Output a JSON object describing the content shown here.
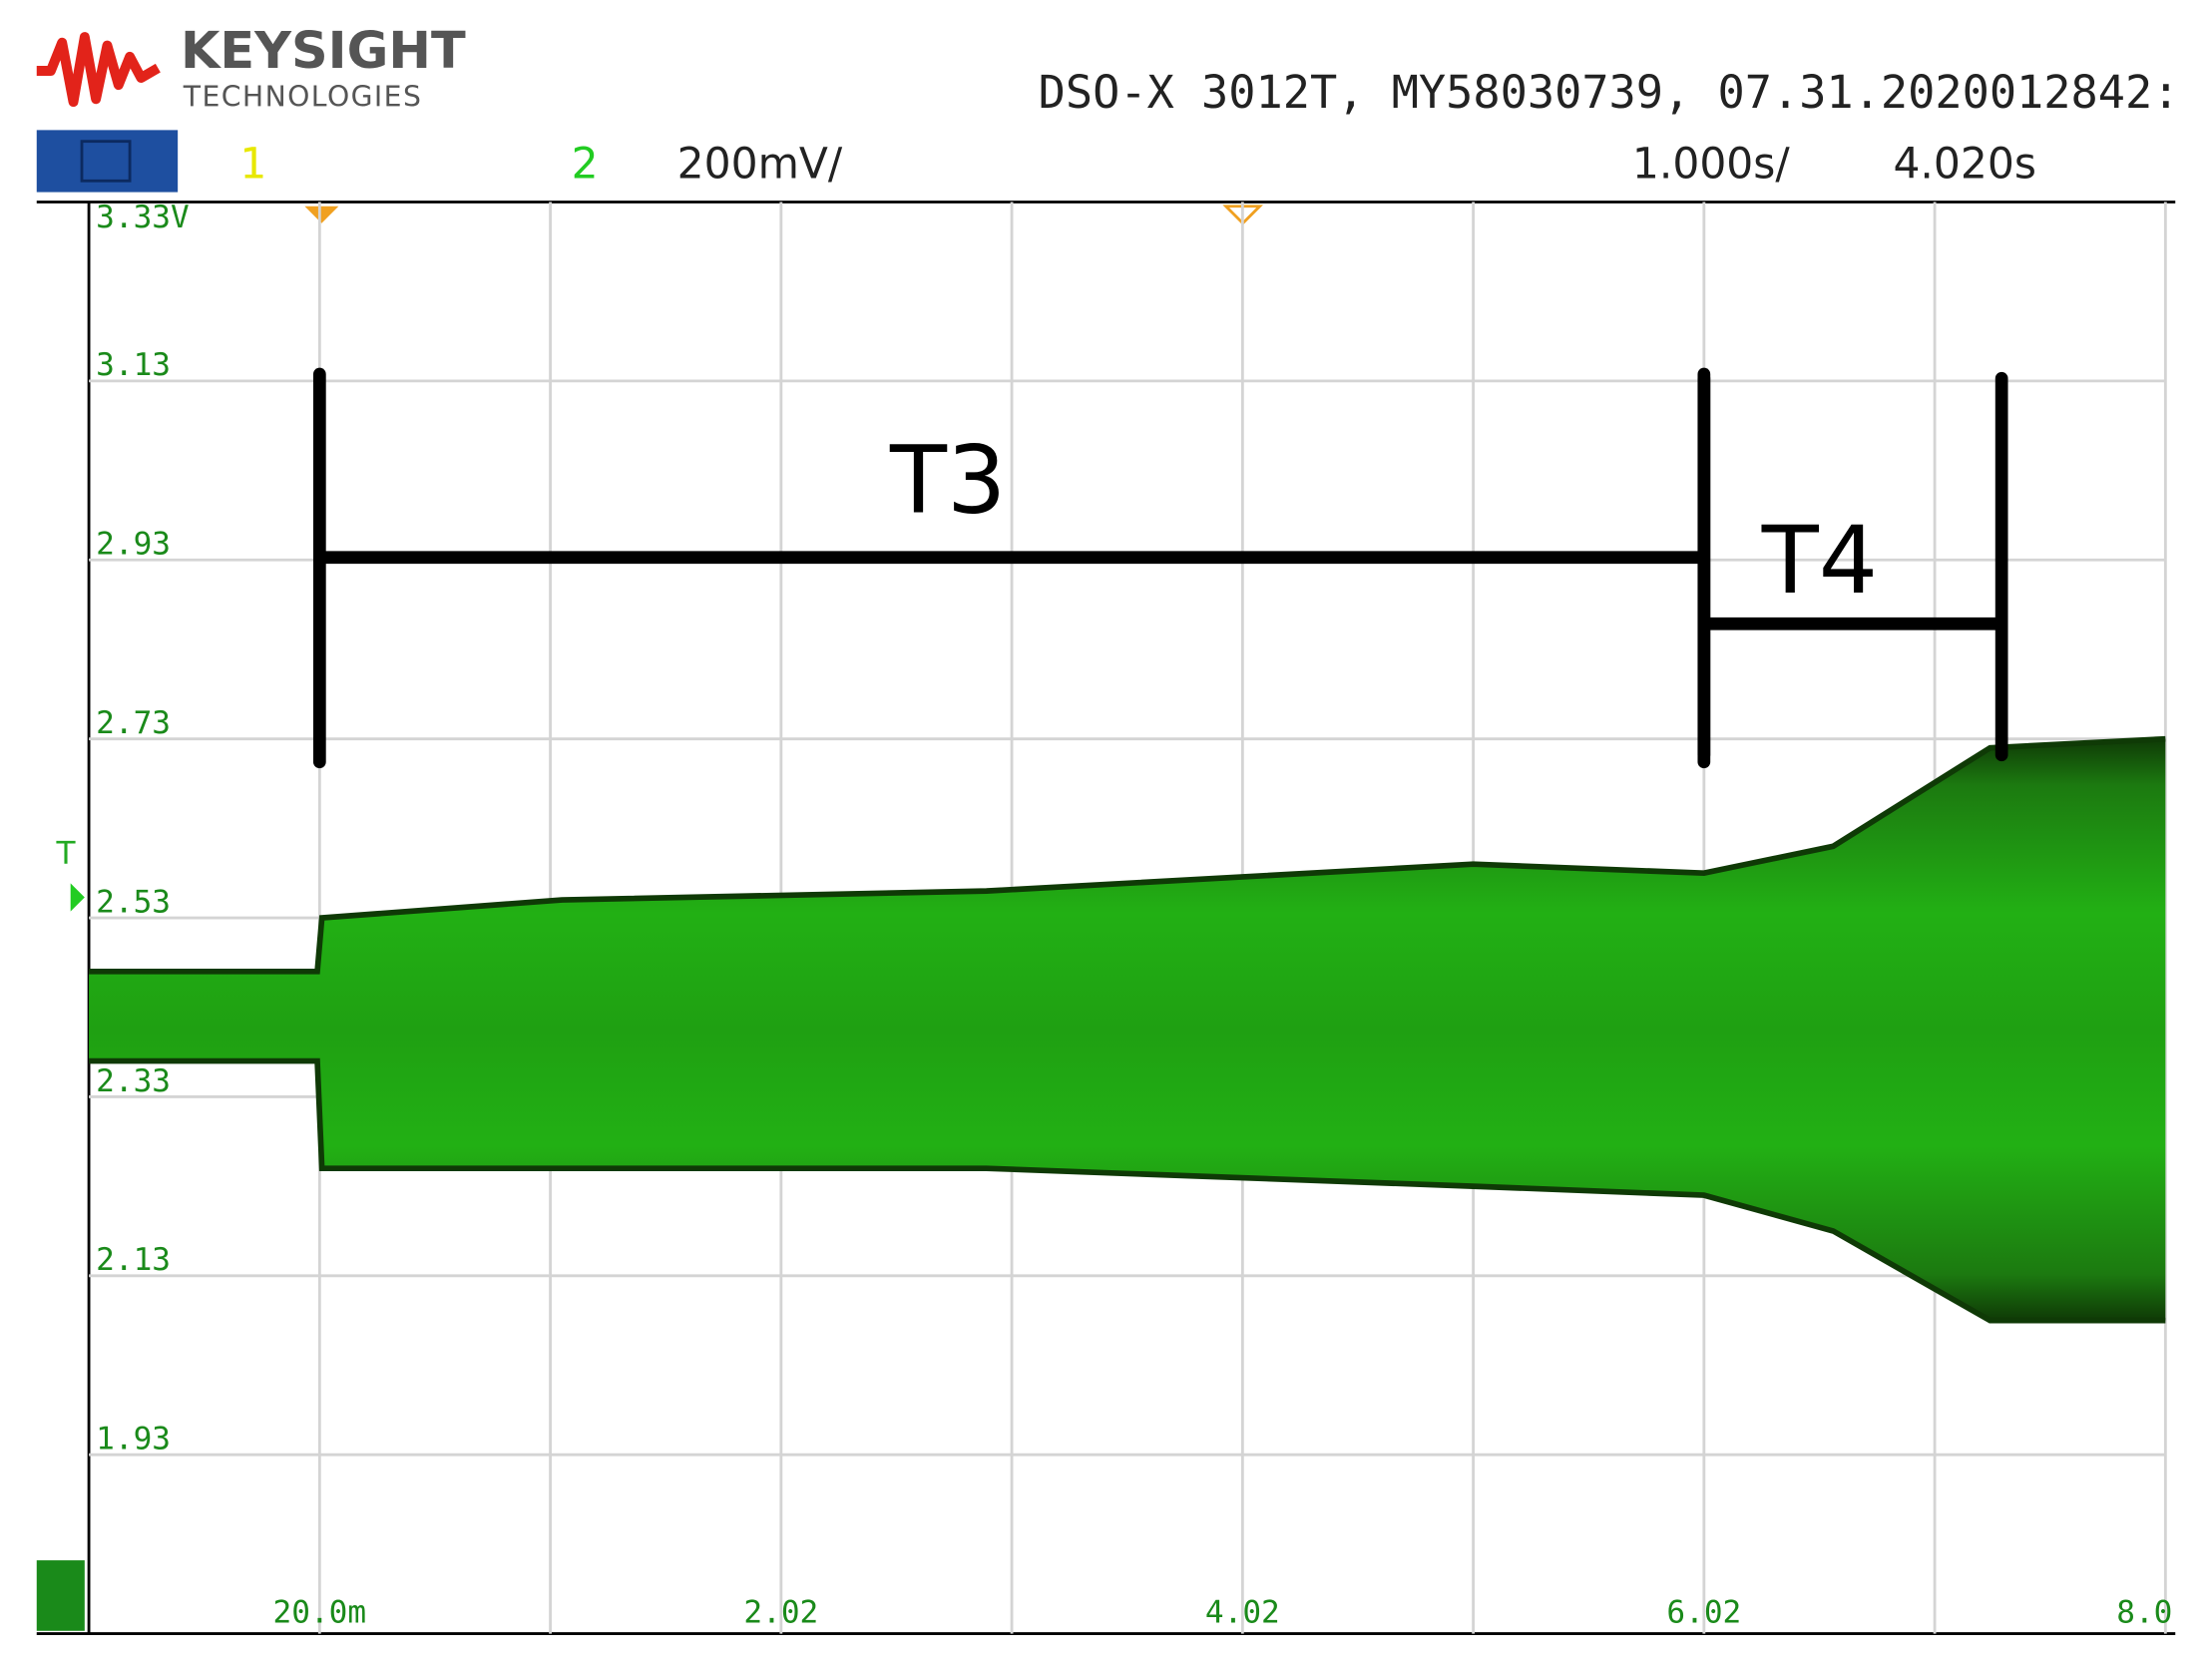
{
  "header": {
    "brand": "KEYSIGHT",
    "brand_sub": "TECHNOLOGIES",
    "instrument": "DSO-X 3012T, MY58030739, 07.31.2020012842:",
    "channel_1": "1",
    "channel_2": "2",
    "ch2_scale": "200mV/",
    "time_scale": "1.000s/",
    "time_delay": "4.020s",
    "trigger_marker": "T"
  },
  "chart_data": {
    "type": "envelope",
    "color": "#22b014",
    "edge_color": "#0f3a06",
    "x": [
      -0.98,
      0.01,
      0.03,
      1.07,
      2.91,
      5.02,
      6.02,
      6.58,
      7.26,
      8.02
    ],
    "envelope_top": [
      2.47,
      2.47,
      2.53,
      2.55,
      2.56,
      2.59,
      2.58,
      2.61,
      2.72,
      2.73
    ],
    "envelope_bottom": [
      2.37,
      2.37,
      2.25,
      2.25,
      2.25,
      2.23,
      2.22,
      2.18,
      2.08,
      2.08
    ],
    "xlim": [
      -0.98,
      8.02
    ],
    "ylim": [
      1.73,
      3.33
    ],
    "xticks": [
      {
        "value": 0.02,
        "label": "20.0m"
      },
      2.02,
      4.02,
      6.02,
      {
        "value": 8.02,
        "label": "8.0"
      }
    ],
    "yticks": [
      {
        "value": 3.33,
        "label": "3.33V"
      },
      3.13,
      2.93,
      2.73,
      2.53,
      {
        "value": 2.33,
        "label": "2.33"
      },
      2.13,
      1.93
    ],
    "grid": true,
    "annotations": [
      {
        "text": "T3",
        "x0": 0.02,
        "x1": 6.02
      },
      {
        "text": "T4",
        "x0": 6.02,
        "x1": 7.31
      }
    ]
  }
}
